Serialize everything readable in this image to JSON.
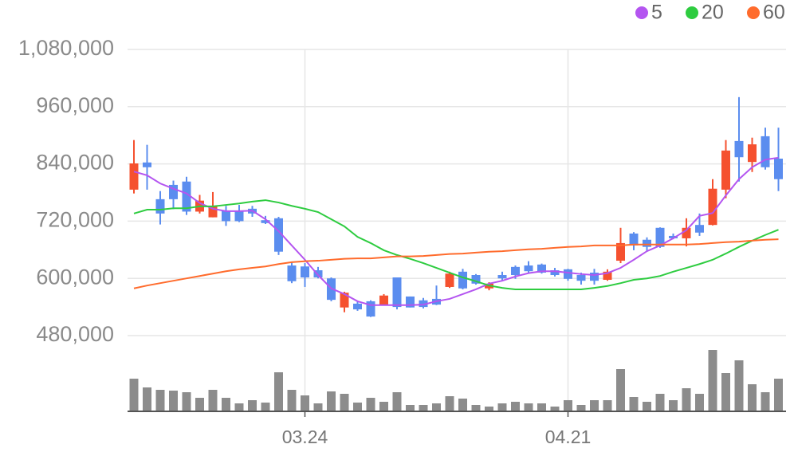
{
  "chart_data": {
    "type": "candlestick",
    "categories": [
      null,
      null,
      null,
      null,
      null,
      null,
      null,
      null,
      null,
      null,
      null,
      null,
      null,
      "03.24",
      null,
      null,
      null,
      null,
      null,
      null,
      null,
      null,
      null,
      null,
      null,
      null,
      null,
      null,
      null,
      null,
      null,
      null,
      null,
      "04.21",
      null,
      null,
      null,
      null,
      null,
      null,
      null,
      null,
      null,
      null,
      null,
      null,
      null,
      null,
      null,
      null
    ],
    "open": [
      786000,
      843000,
      766000,
      796000,
      803000,
      740000,
      728000,
      741000,
      742000,
      746000,
      722000,
      726000,
      627000,
      625000,
      617000,
      600000,
      539000,
      547000,
      552000,
      545000,
      602000,
      562000,
      554000,
      557000,
      582000,
      614000,
      607000,
      579000,
      607000,
      624000,
      627000,
      629000,
      617000,
      619000,
      607000,
      612000,
      597000,
      637000,
      694000,
      681000,
      706000,
      689000,
      684000,
      712000,
      712000,
      786000,
      888000,
      844000,
      898000,
      851000
    ],
    "high": [
      890000,
      880000,
      783000,
      805000,
      813000,
      775000,
      781000,
      752000,
      754000,
      752000,
      731000,
      729000,
      634000,
      632000,
      624000,
      602000,
      572000,
      552000,
      554000,
      567000,
      602000,
      562000,
      559000,
      585000,
      614000,
      620000,
      609000,
      592000,
      614000,
      627000,
      636000,
      631000,
      622000,
      620000,
      612000,
      620000,
      619000,
      706000,
      697000,
      686000,
      707000,
      694000,
      726000,
      736000,
      808000,
      890000,
      980000,
      895000,
      916000,
      916000
    ],
    "low": [
      778000,
      786000,
      713000,
      745000,
      733000,
      736000,
      728000,
      710000,
      718000,
      729000,
      714000,
      649000,
      590000,
      582000,
      600000,
      552000,
      529000,
      532000,
      519000,
      544000,
      535000,
      539000,
      537000,
      544000,
      580000,
      577000,
      587000,
      575000,
      594000,
      599000,
      612000,
      610000,
      604000,
      595000,
      587000,
      587000,
      595000,
      632000,
      659000,
      657000,
      664000,
      682000,
      667000,
      689000,
      711000,
      768000,
      803000,
      823000,
      828000,
      783000
    ],
    "close": [
      841000,
      833000,
      736000,
      766000,
      740000,
      763000,
      751000,
      720000,
      720000,
      736000,
      716000,
      656000,
      594000,
      602000,
      602000,
      555000,
      570000,
      535000,
      520000,
      564000,
      540000,
      539000,
      540000,
      545000,
      610000,
      579000,
      589000,
      589000,
      600000,
      607000,
      615000,
      612000,
      607000,
      599000,
      595000,
      595000,
      614000,
      674000,
      669000,
      666000,
      666000,
      684000,
      706000,
      696000,
      788000,
      868000,
      854000,
      881000,
      833000,
      808000
    ],
    "up_color": "#f5512f",
    "down_color": "#5b8def",
    "series": [
      {
        "name": "5",
        "color": "#b455f0",
        "values": [
          824000,
          816000,
          799000,
          788000,
          778000,
          758000,
          746000,
          741000,
          741000,
          742000,
          724000,
          699000,
          669000,
          639000,
          607000,
          579000,
          567000,
          552000,
          544000,
          544000,
          544000,
          544000,
          545000,
          552000,
          557000,
          567000,
          577000,
          589000,
          595000,
          604000,
          611000,
          615000,
          615000,
          612000,
          609000,
          607000,
          611000,
          622000,
          639000,
          657000,
          669000,
          684000,
          701000,
          731000,
          737000,
          774000,
          808000,
          833000,
          849000,
          853000
        ]
      },
      {
        "name": "20",
        "color": "#2ecc40",
        "values": [
          736000,
          744000,
          744000,
          747000,
          747000,
          751000,
          751000,
          754000,
          757000,
          761000,
          764000,
          759000,
          752000,
          746000,
          739000,
          724000,
          709000,
          687000,
          674000,
          659000,
          649000,
          641000,
          632000,
          622000,
          612000,
          602000,
          594000,
          585000,
          580000,
          577000,
          577000,
          577000,
          577000,
          577000,
          577000,
          580000,
          584000,
          590000,
          597000,
          600000,
          605000,
          614000,
          622000,
          630000,
          639000,
          652000,
          666000,
          679000,
          691000,
          702000
        ]
      },
      {
        "name": "60",
        "color": "#ff6b2c",
        "values": [
          579000,
          585000,
          590000,
          595000,
          600000,
          605000,
          610000,
          615000,
          619000,
          622000,
          625000,
          630000,
          634000,
          636000,
          637000,
          639000,
          641000,
          642000,
          642000,
          644000,
          646000,
          646000,
          647000,
          649000,
          651000,
          652000,
          654000,
          656000,
          657000,
          659000,
          661000,
          662000,
          664000,
          666000,
          667000,
          669000,
          669000,
          669000,
          671000,
          671000,
          671000,
          671000,
          671000,
          672000,
          674000,
          676000,
          677000,
          679000,
          681000,
          682000
        ]
      }
    ],
    "volume": {
      "color": "#8c8c8c",
      "values": [
        41,
        30,
        27,
        26,
        24,
        17,
        27,
        17,
        10,
        14,
        11,
        49,
        27,
        20,
        10,
        25,
        22,
        11,
        17,
        12,
        24,
        8,
        8,
        10,
        19,
        16,
        8,
        6,
        10,
        12,
        10,
        10,
        6,
        14,
        8,
        14,
        14,
        53,
        18,
        12,
        22,
        14,
        29,
        22,
        77,
        48,
        64,
        34,
        24,
        41
      ]
    },
    "ylim": [
      480000,
      1080000
    ],
    "yticks": [
      {
        "value": 480000,
        "label": "480,000"
      },
      {
        "value": 600000,
        "label": "600,000"
      },
      {
        "value": 720000,
        "label": "720,000"
      },
      {
        "value": 840000,
        "label": "840,000"
      },
      {
        "value": 960000,
        "label": "960,000"
      },
      {
        "value": 1080000,
        "label": "1,080,000"
      }
    ],
    "grid": true,
    "legend": "top-right"
  }
}
